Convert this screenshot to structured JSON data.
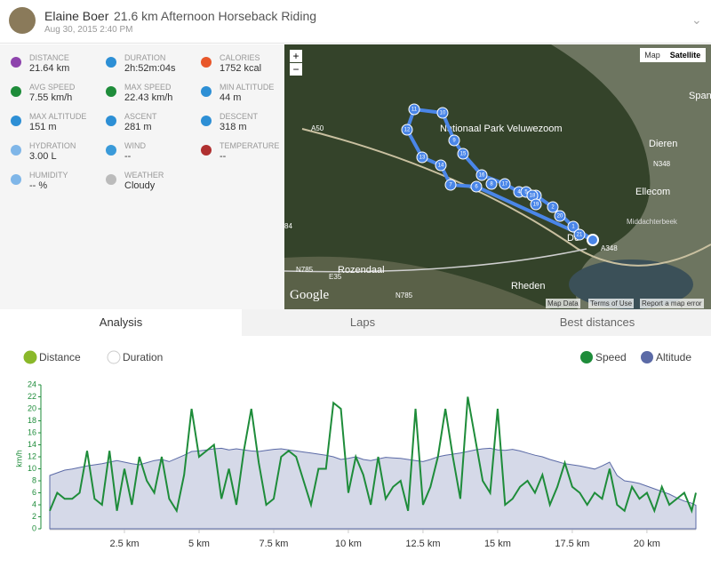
{
  "header": {
    "name": "Elaine Boer",
    "title": "21.6 km Afternoon Horseback Riding",
    "date": "Aug 30, 2015 2:40 PM"
  },
  "stats": [
    {
      "label": "DISTANCE",
      "value": "21.64 km"
    },
    {
      "label": "DURATION",
      "value": "2h:52m:04s"
    },
    {
      "label": "CALORIES",
      "value": "1752 kcal"
    },
    {
      "label": "AVG SPEED",
      "value": "7.55 km/h"
    },
    {
      "label": "MAX SPEED",
      "value": "22.43 km/h"
    },
    {
      "label": "MIN ALTITUDE",
      "value": "44 m"
    },
    {
      "label": "MAX ALTITUDE",
      "value": "151 m"
    },
    {
      "label": "ASCENT",
      "value": "281 m"
    },
    {
      "label": "DESCENT",
      "value": "318 m"
    },
    {
      "label": "HYDRATION",
      "value": "3.00 L"
    },
    {
      "label": "WIND",
      "value": "--"
    },
    {
      "label": "TEMPERATURE",
      "value": "--"
    },
    {
      "label": "HUMIDITY",
      "value": "-- %"
    },
    {
      "label": "WEATHER",
      "value": "Cloudy"
    }
  ],
  "map": {
    "labels": [
      "Spanker",
      "Dieren",
      "N348",
      "Ellecom",
      "Middachterbeek",
      "A348",
      "Rozendaal",
      "Rheden",
      "N785",
      "N785",
      "E35",
      "A50",
      "84",
      "Nationaal Park Veluwezoom",
      "De"
    ],
    "markers": [
      1,
      2,
      3,
      4,
      5,
      6,
      7,
      8,
      9,
      10,
      11,
      12,
      13,
      14,
      15,
      16,
      17,
      18,
      19,
      20,
      21
    ],
    "controls": {
      "zoom_in": "+",
      "zoom_out": "−",
      "map": "Map",
      "satellite": "Satellite"
    },
    "footer": [
      "Map Data",
      "Terms of Use",
      "Report a map error"
    ],
    "logo": "Google"
  },
  "tabs": [
    "Analysis",
    "Laps",
    "Best distances"
  ],
  "toggles": [
    {
      "label": "Distance",
      "checked": true
    },
    {
      "label": "Duration",
      "checked": false
    }
  ],
  "chart_data": {
    "type": "line",
    "y_label": "km/h",
    "x": [
      0,
      0.25,
      0.5,
      0.75,
      1,
      1.25,
      1.5,
      1.75,
      2,
      2.25,
      2.5,
      2.75,
      3,
      3.25,
      3.5,
      3.75,
      4,
      4.25,
      4.5,
      4.75,
      5,
      5.25,
      5.5,
      5.75,
      6,
      6.25,
      6.5,
      6.75,
      7,
      7.25,
      7.5,
      7.75,
      8,
      8.25,
      8.5,
      8.75,
      9,
      9.25,
      9.5,
      9.75,
      10,
      10.25,
      10.5,
      10.75,
      11,
      11.25,
      11.5,
      11.75,
      12,
      12.25,
      12.5,
      12.75,
      13,
      13.25,
      13.5,
      13.75,
      14,
      14.25,
      14.5,
      14.75,
      15,
      15.25,
      15.5,
      15.75,
      16,
      16.25,
      16.5,
      16.75,
      17,
      17.25,
      17.5,
      17.75,
      18,
      18.25,
      18.5,
      18.75,
      19,
      19.25,
      19.5,
      19.75,
      20,
      20.25,
      20.5,
      20.75,
      21,
      21.25,
      21.5,
      21.64
    ],
    "series": [
      {
        "name": "Speed",
        "color": "#1e8c3a",
        "values": [
          3,
          6,
          5,
          5,
          6,
          13,
          5,
          4,
          13,
          3,
          10,
          4,
          12,
          8,
          6,
          12,
          5,
          3,
          9,
          20,
          12,
          13,
          14,
          5,
          10,
          4,
          13,
          20,
          11,
          4,
          5,
          12,
          13,
          12,
          8,
          4,
          10,
          10,
          21,
          20,
          6,
          12,
          9,
          4,
          12,
          5,
          7,
          8,
          3,
          20,
          4,
          7,
          12,
          20,
          12,
          5,
          22,
          15,
          8,
          6,
          20,
          4,
          5,
          7,
          8,
          6,
          9,
          4,
          7,
          11,
          7,
          6,
          4,
          6,
          5,
          10,
          4,
          3,
          7,
          5,
          6,
          3,
          7,
          4,
          5,
          6,
          3,
          6
        ]
      },
      {
        "name": "Altitude",
        "color": "#5b6aa6",
        "axis": "y2",
        "values": [
          100,
          105,
          110,
          112,
          115,
          118,
          120,
          122,
          125,
          128,
          125,
          122,
          120,
          124,
          128,
          130,
          126,
          132,
          138,
          145,
          146,
          148,
          150,
          151,
          148,
          150,
          148,
          146,
          145,
          147,
          149,
          150,
          148,
          146,
          144,
          142,
          140,
          138,
          135,
          130,
          132,
          135,
          130,
          128,
          131,
          134,
          133,
          132,
          130,
          128,
          126,
          130,
          135,
          138,
          140,
          142,
          145,
          148,
          150,
          151,
          148,
          147,
          149,
          146,
          142,
          138,
          135,
          130,
          126,
          122,
          120,
          118,
          115,
          112,
          118,
          125,
          100,
          90,
          88,
          85,
          80,
          75,
          70,
          65,
          58,
          52,
          48,
          44
        ]
      }
    ],
    "xlim": [
      0,
      21.64
    ],
    "ylim": [
      0,
      24
    ],
    "y2lim": [
      0,
      270
    ],
    "yticks": [
      0,
      2,
      4,
      6,
      8,
      10,
      12,
      14,
      16,
      18,
      20,
      22,
      24
    ],
    "xticks": [
      {
        "value": 2.5,
        "label": "2.5 km"
      },
      {
        "value": 5,
        "label": "5 km"
      },
      {
        "value": 7.5,
        "label": "7.5 km"
      },
      {
        "value": 10,
        "label": "10 km"
      },
      {
        "value": 12.5,
        "label": "12.5 km"
      },
      {
        "value": 15,
        "label": "15 km"
      },
      {
        "value": 17.5,
        "label": "17.5 km"
      },
      {
        "value": 20,
        "label": "20 km"
      }
    ]
  }
}
